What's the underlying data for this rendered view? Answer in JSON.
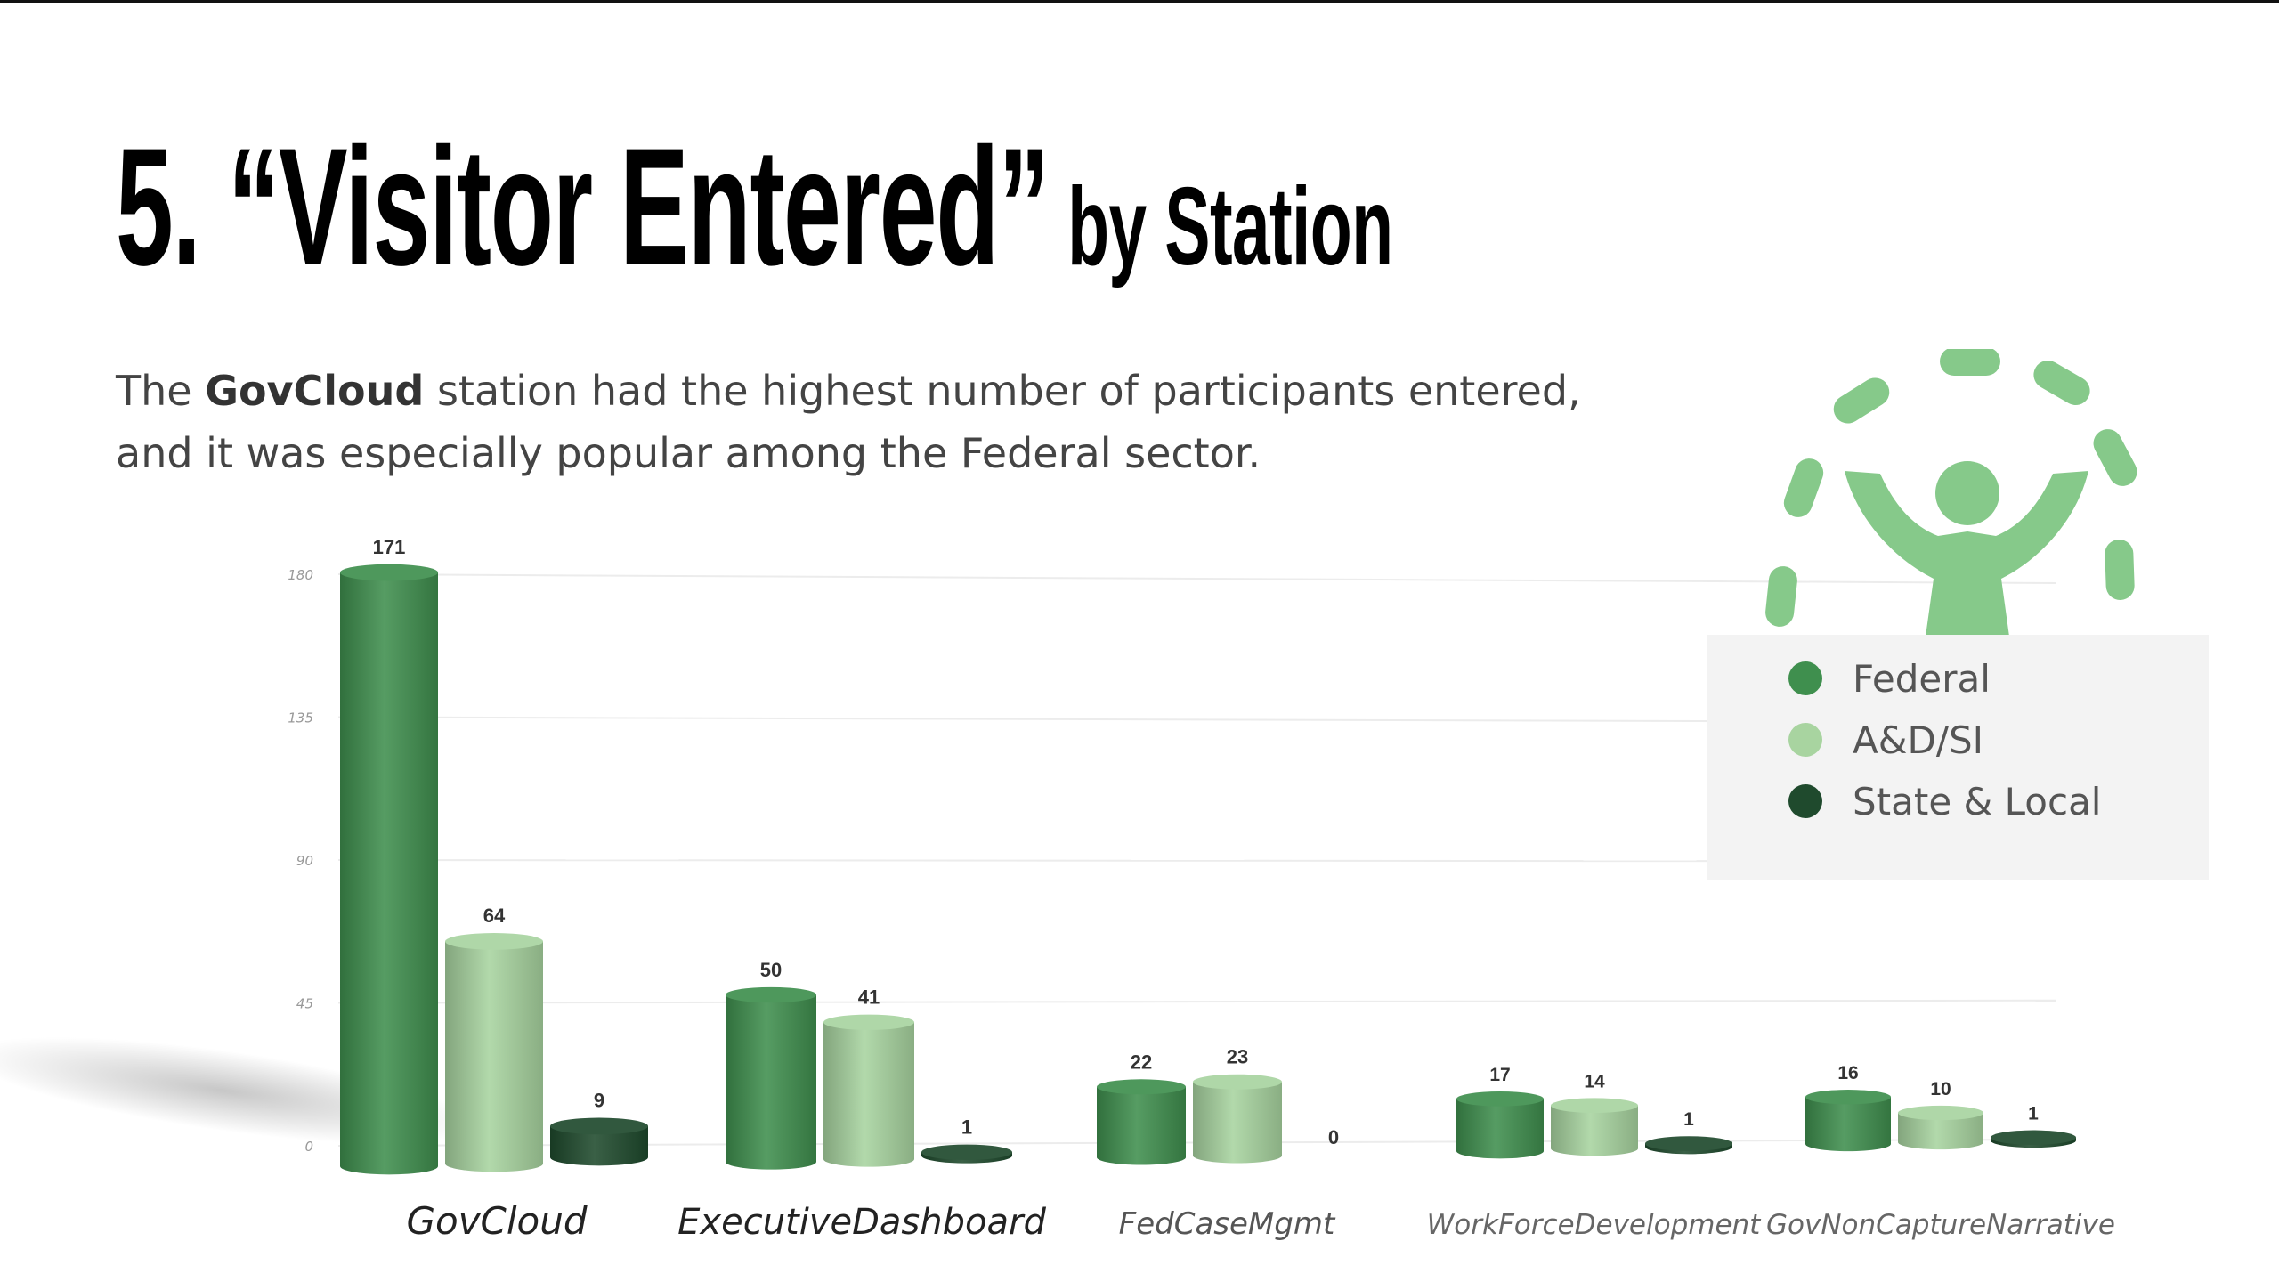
{
  "slide": {
    "title_main": "5. “Visitor Entered”",
    "title_sub": " by Station",
    "description_line1_pre": "The ",
    "description_line1_bold": "GovCloud",
    "description_line1_post": " station had the highest number of participants entered,",
    "description_line2": "and it was especially popular among the Federal sector."
  },
  "colors": {
    "federal": "#3f8f4e",
    "adsi": "#a8d4a0",
    "state_local": "#1f4a2d",
    "icon": "#86c98a"
  },
  "icon": {
    "name": "celebrating-person-icon"
  },
  "legend": {
    "items": [
      {
        "label": "Federal",
        "color": "#3f8f4e"
      },
      {
        "label": "A&D/SI",
        "color": "#a8d4a0"
      },
      {
        "label": "State & Local",
        "color": "#1f4a2d"
      }
    ]
  },
  "chart_data": {
    "type": "bar",
    "categories": [
      "GovCloud",
      "ExecutiveDashboard",
      "FedCaseMgmt",
      "WorkForceDevelopment",
      "GovNonCaptureNarrative"
    ],
    "series": [
      {
        "name": "Federal",
        "values": [
          171,
          50,
          22,
          17,
          16
        ]
      },
      {
        "name": "A&D/SI",
        "values": [
          64,
          41,
          23,
          14,
          10
        ]
      },
      {
        "name": "State & Local",
        "values": [
          9,
          1,
          0,
          1,
          1
        ]
      }
    ],
    "y_ticks": [
      0,
      45,
      90,
      135,
      180
    ],
    "ylim": [
      0,
      180
    ],
    "grid": true,
    "legend_position": "right"
  }
}
